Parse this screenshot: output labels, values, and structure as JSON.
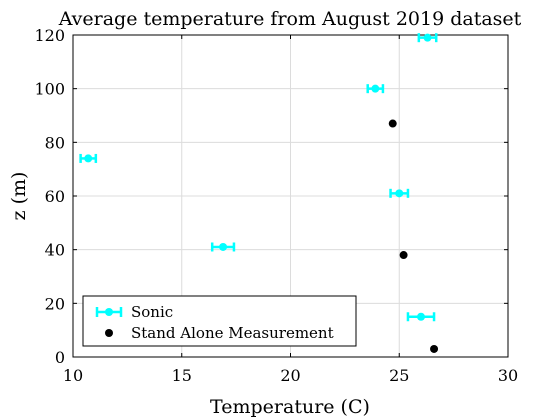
{
  "chart_data": {
    "type": "scatter",
    "title": "Average temperature from August 2019 dataset",
    "xlabel": "Temperature (C)",
    "ylabel": "z (m)",
    "xlim": [
      10,
      30
    ],
    "ylim": [
      0,
      120
    ],
    "xticks": [
      10,
      15,
      20,
      25,
      30
    ],
    "yticks": [
      0,
      20,
      40,
      60,
      80,
      100,
      120
    ],
    "grid": true,
    "legend_position": "bottom-left",
    "series": [
      {
        "name": "Sonic",
        "color": "#00ffff",
        "marker": "circle-errorbar",
        "points": [
          {
            "x": 26.0,
            "y": 15,
            "xerr": 0.6
          },
          {
            "x": 16.9,
            "y": 41,
            "xerr": 0.5
          },
          {
            "x": 25.0,
            "y": 61,
            "xerr": 0.4
          },
          {
            "x": 10.7,
            "y": 74,
            "xerr": 0.35
          },
          {
            "x": 23.9,
            "y": 100,
            "xerr": 0.35
          },
          {
            "x": 26.3,
            "y": 119,
            "xerr": 0.4
          }
        ]
      },
      {
        "name": "Stand Alone Measurement",
        "color": "#000000",
        "marker": "dot",
        "points": [
          {
            "x": 26.6,
            "y": 3
          },
          {
            "x": 25.2,
            "y": 38
          },
          {
            "x": 24.7,
            "y": 87
          }
        ]
      }
    ]
  }
}
